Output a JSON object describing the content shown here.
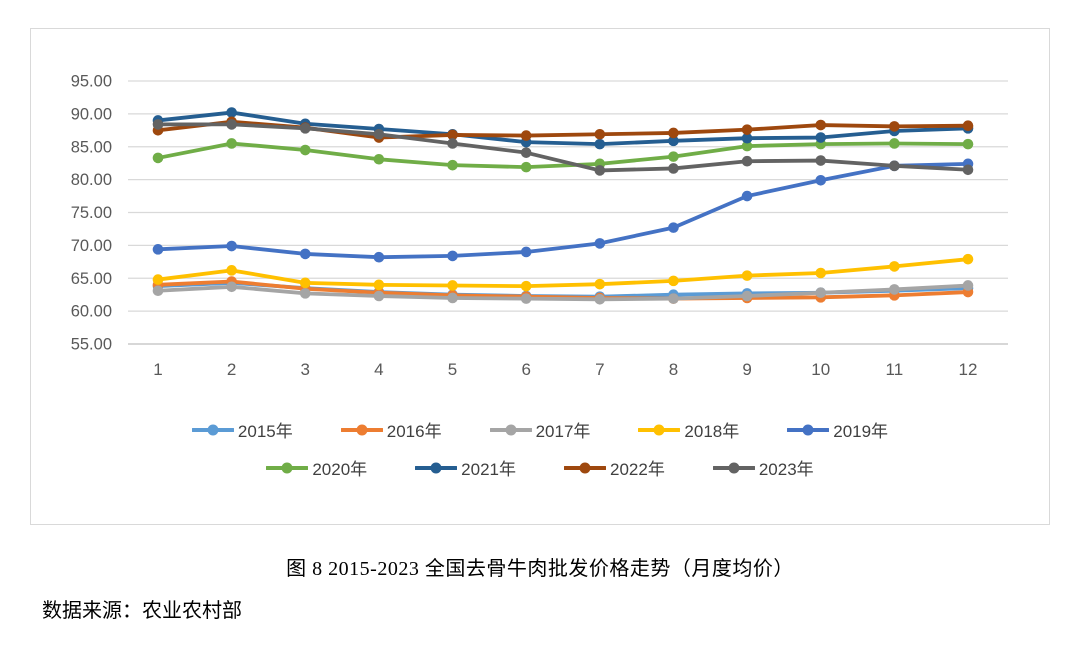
{
  "chart_data": {
    "type": "line",
    "title": "",
    "xlabel": "",
    "ylabel": "",
    "categories": [
      "1",
      "2",
      "3",
      "4",
      "5",
      "6",
      "7",
      "8",
      "9",
      "10",
      "11",
      "12"
    ],
    "ylim": [
      55,
      95
    ],
    "ytick_step": 5,
    "yticks": [
      "95.00",
      "90.00",
      "85.00",
      "80.00",
      "75.00",
      "70.00",
      "65.00",
      "60.00",
      "55.00"
    ],
    "grid": true,
    "gridline_color": "#d9d9d9",
    "axis_line_color": "#bfbfbf",
    "tick_label_color": "#595959",
    "legend_position": "bottom",
    "legend_rows": [
      [
        0,
        1,
        2,
        3,
        4
      ],
      [
        5,
        6,
        7,
        8
      ]
    ],
    "series": [
      {
        "name": "2015年",
        "color": "#5B9BD5",
        "values": [
          63.8,
          64.3,
          63.5,
          62.9,
          62.5,
          62.3,
          62.2,
          62.5,
          62.7,
          62.8,
          63.1,
          63.5
        ]
      },
      {
        "name": "2016年",
        "color": "#ED7D31",
        "values": [
          64.0,
          64.5,
          63.4,
          62.8,
          62.4,
          62.2,
          62.0,
          61.9,
          62.0,
          62.1,
          62.4,
          62.9
        ]
      },
      {
        "name": "2017年",
        "color": "#A5A5A5",
        "values": [
          63.1,
          63.7,
          62.7,
          62.3,
          62.0,
          61.9,
          61.8,
          61.9,
          62.3,
          62.8,
          63.3,
          63.9
        ]
      },
      {
        "name": "2018年",
        "color": "#FFC000",
        "values": [
          64.8,
          66.2,
          64.3,
          64.0,
          63.9,
          63.8,
          64.1,
          64.6,
          65.4,
          65.8,
          66.8,
          67.9
        ]
      },
      {
        "name": "2019年",
        "color": "#4472C4",
        "values": [
          69.4,
          69.9,
          68.7,
          68.2,
          68.4,
          69.0,
          70.3,
          72.7,
          77.5,
          79.9,
          82.1,
          82.4
        ]
      },
      {
        "name": "2020年",
        "color": "#70AD47",
        "values": [
          83.3,
          85.5,
          84.5,
          83.1,
          82.2,
          81.9,
          82.4,
          83.5,
          85.1,
          85.4,
          85.5,
          85.4
        ]
      },
      {
        "name": "2021年",
        "color": "#255E91",
        "values": [
          89.0,
          90.2,
          88.5,
          87.7,
          86.9,
          85.7,
          85.4,
          85.9,
          86.3,
          86.4,
          87.4,
          87.8
        ]
      },
      {
        "name": "2022年",
        "color": "#9E480E",
        "values": [
          87.5,
          88.8,
          87.9,
          86.4,
          86.8,
          86.7,
          86.9,
          87.1,
          87.6,
          88.3,
          88.1,
          88.2
        ]
      },
      {
        "name": "2023年",
        "color": "#636363",
        "values": [
          88.4,
          88.4,
          87.8,
          86.9,
          85.5,
          84.1,
          81.4,
          81.7,
          82.8,
          82.9,
          82.1,
          81.5
        ]
      }
    ]
  },
  "caption": "图 8  2015-2023 全国去骨牛肉批发价格走势（月度均价）",
  "source": "数据来源：农业农村部"
}
